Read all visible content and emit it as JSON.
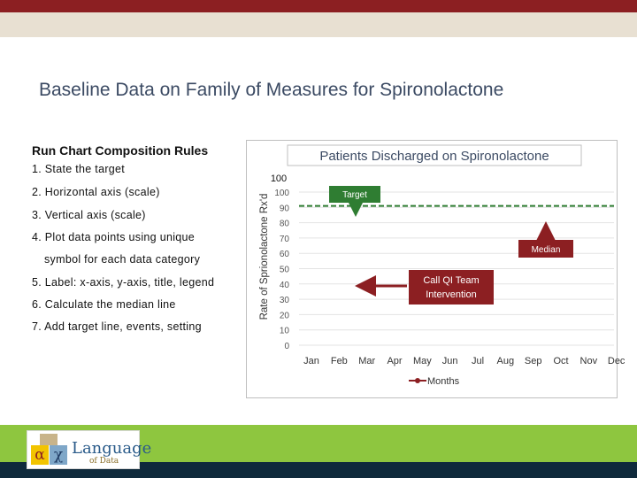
{
  "slide": {
    "title": "Baseline Data on Family of Measures for Spironolactone"
  },
  "rules": {
    "title": "Run Chart Composition Rules",
    "items": [
      "1. State the target",
      "2. Horizontal axis (scale)",
      "3. Vertical axis (scale)",
      "4. Plot data points using unique",
      "symbol for each data category",
      "5. Label: x-axis, y-axis, title, legend",
      "6. Calculate the median line",
      "7. Add target line, events, setting"
    ]
  },
  "logo": {
    "alpha": "α",
    "chi": "χ",
    "name": "Language",
    "sub": "of Data"
  },
  "colors": {
    "top_band": "#8c1f22",
    "accent_red": "#8c1f22",
    "target_green": "#2f7d32",
    "bottom_green": "#8ec63f",
    "bottom_dark": "#0f2a3c"
  },
  "chart_data": {
    "type": "line",
    "title": "Patients Discharged on Spironolactone",
    "ylabel": "Rate of Sprionolactone Rx'd",
    "xlabel": "Months",
    "categories": [
      "Jan",
      "Feb",
      "Mar",
      "Apr",
      "May",
      "Jun",
      "Jul",
      "Aug",
      "Sep",
      "Oct",
      "Nov",
      "Dec"
    ],
    "yticks": [
      0,
      10,
      20,
      30,
      40,
      50,
      60,
      70,
      80,
      90,
      100
    ],
    "ylim": [
      0,
      100
    ],
    "extra_label": "100",
    "target_value": 91,
    "grid": true,
    "legend": {
      "label": "Months",
      "placement": "bottom"
    },
    "annotations": [
      {
        "text": "Target",
        "style": "green-box",
        "arrow": "down"
      },
      {
        "text": "Median",
        "style": "red-box",
        "arrow": "up"
      },
      {
        "text": "Call QI Team Intervention",
        "style": "red-box",
        "arrow": "left"
      }
    ]
  }
}
